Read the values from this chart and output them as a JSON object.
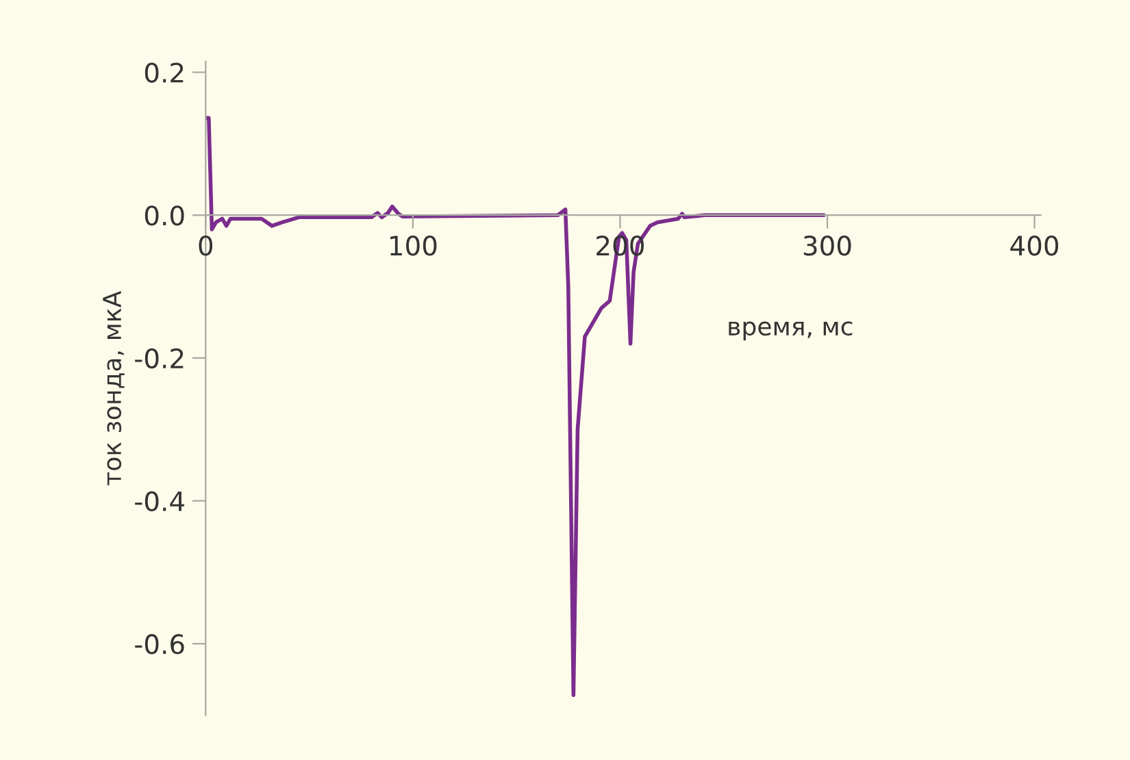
{
  "chart_data": {
    "type": "line",
    "xlabel": "время, мс",
    "ylabel": "ток зонда, мкА",
    "x": [
      0,
      1.5,
      3,
      5,
      8,
      10,
      12,
      20,
      27,
      32,
      37,
      45,
      80,
      83,
      85,
      88,
      90,
      93,
      95,
      170,
      173.6,
      175,
      177.5,
      179.5,
      183,
      191,
      195,
      198,
      199.5,
      201,
      203,
      205,
      206.5,
      208.6,
      214.5,
      218,
      228,
      230,
      231,
      241,
      298
    ],
    "series": [
      {
        "color": "#7b2d8e",
        "values": [
          0.136,
          0.136,
          -0.02,
          -0.01,
          -0.005,
          -0.015,
          -0.005,
          -0.005,
          -0.005,
          -0.015,
          -0.01,
          -0.003,
          -0.003,
          0.003,
          -0.003,
          0.003,
          0.012,
          0.002,
          -0.002,
          0.0,
          0.008,
          -0.1,
          -0.672,
          -0.3,
          -0.17,
          -0.13,
          -0.12,
          -0.06,
          -0.03,
          -0.025,
          -0.035,
          -0.18,
          -0.08,
          -0.04,
          -0.015,
          -0.01,
          -0.005,
          0.002,
          -0.003,
          0.0,
          0.0
        ]
      }
    ],
    "xlim": [
      0,
      403
    ],
    "ylim": [
      -0.7,
      0.215
    ],
    "xticks": [
      0,
      100,
      200,
      300,
      400
    ],
    "yticks": [
      {
        "value": 0.2,
        "label": "0.2"
      },
      {
        "value": 0.0,
        "label": "0.0"
      },
      {
        "value": -0.2,
        "label": "-0.2"
      },
      {
        "value": -0.4,
        "label": "-0.4"
      },
      {
        "value": -0.6,
        "label": "-0.6"
      }
    ],
    "marker": "none",
    "line_style": "solid",
    "grid": false,
    "legend": false
  }
}
